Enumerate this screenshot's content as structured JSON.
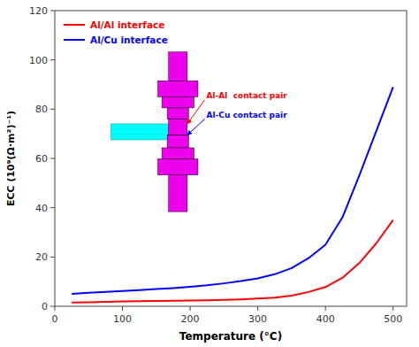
{
  "chart_data": {
    "type": "line",
    "title": "",
    "xlabel": "Temperature (°C)",
    "ylabel": "ECC (10⁹(Ω·m²)⁻¹)",
    "x": [
      25,
      50,
      75,
      100,
      125,
      150,
      175,
      200,
      225,
      250,
      275,
      300,
      325,
      350,
      375,
      400,
      425,
      450,
      475,
      500
    ],
    "series": [
      {
        "name": "Al/Al interface",
        "color": "#FF0000",
        "values": [
          1.5,
          1.65,
          1.8,
          1.95,
          2.05,
          2.15,
          2.25,
          2.35,
          2.45,
          2.6,
          2.8,
          3.1,
          3.5,
          4.3,
          5.8,
          7.8,
          11.5,
          17.5,
          25.5,
          35.0
        ]
      },
      {
        "name": "Al/Cu interface",
        "color": "#0000FF",
        "values": [
          5.0,
          5.5,
          5.8,
          6.2,
          6.6,
          7.0,
          7.4,
          7.9,
          8.5,
          9.3,
          10.2,
          11.3,
          13.0,
          15.5,
          19.5,
          25.0,
          36.0,
          53.0,
          71.0,
          89.0
        ]
      }
    ],
    "xlim": [
      0,
      520
    ],
    "ylim": [
      0,
      120
    ],
    "xticks": [
      0,
      100,
      200,
      300,
      400,
      500
    ],
    "yticks": [
      0,
      20,
      40,
      60,
      80,
      100,
      120
    ],
    "grid": false,
    "legend": "upper left",
    "annotations": [
      "Al-Al  contact pair",
      "Al-Cu contact pair"
    ]
  }
}
